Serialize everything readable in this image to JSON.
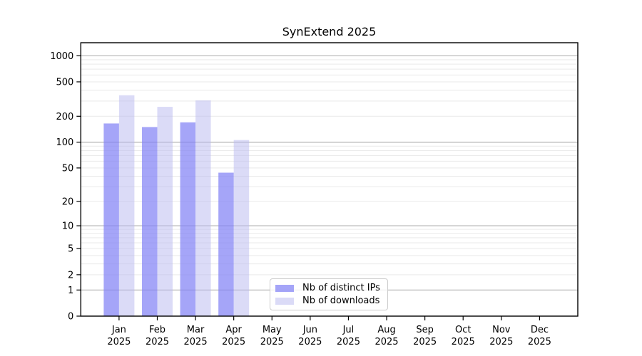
{
  "chart_data": {
    "type": "bar",
    "title": "SynExtend 2025",
    "year_label": "2025",
    "categories": [
      "Jan",
      "Feb",
      "Mar",
      "Apr",
      "May",
      "Jun",
      "Jul",
      "Aug",
      "Sep",
      "Oct",
      "Nov",
      "Dec"
    ],
    "series": [
      {
        "name": "Nb of distinct IPs",
        "color": "#8282f5",
        "opacity": 0.72,
        "values": [
          165,
          150,
          170,
          44,
          0,
          0,
          0,
          0,
          0,
          0,
          0,
          0
        ]
      },
      {
        "name": "Nb of downloads",
        "color": "#b8b8f0",
        "opacity": 0.5,
        "values": [
          350,
          257,
          305,
          106,
          0,
          0,
          0,
          0,
          0,
          0,
          0,
          0
        ]
      }
    ],
    "xlabel": "",
    "ylabel": "",
    "yscale": "log10(1+x)",
    "ylim": [
      0,
      1414
    ],
    "yticks": [
      0,
      1,
      2,
      5,
      10,
      20,
      50,
      100,
      200,
      500,
      1000
    ],
    "grid": {
      "major_ticks": [
        1,
        10,
        100,
        1000
      ],
      "major_color": "#b2b2b2",
      "minor_ticks": [
        2,
        3,
        4,
        5,
        6,
        7,
        8,
        9,
        20,
        30,
        40,
        50,
        60,
        70,
        80,
        90,
        200,
        300,
        400,
        500,
        600,
        700,
        800,
        900
      ],
      "minor_color": "#e9e9e9"
    },
    "legend": {
      "position": "bottom-center"
    }
  }
}
